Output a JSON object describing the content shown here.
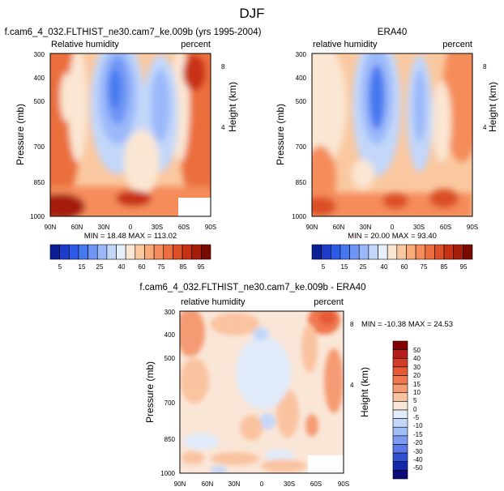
{
  "suptitle": "DJF",
  "chart_data": [
    {
      "type": "heatmap",
      "title": "f.cam6_4_032.FLTHIST_ne30.cam7_ke.009b (yrs 1995-2004)",
      "left_label": "Relative humidity",
      "right_label": "percent",
      "xlabel": "",
      "ylabel": "Pressure (mb)",
      "ylabel_right": "Height (km)",
      "x_ticks": [
        "90N",
        "60N",
        "30N",
        "0",
        "30S",
        "60S",
        "90S"
      ],
      "y_ticks": [
        "300",
        "400",
        "500",
        "700",
        "850",
        "1000"
      ],
      "y_ticks_right": [
        "8",
        "4"
      ],
      "stats": "MIN = 18.48 MAX = 113.02",
      "levels": [
        "5",
        "15",
        "25",
        "40",
        "60",
        "75",
        "85",
        "95"
      ],
      "colors": [
        "#0a1e96",
        "#1e3cc8",
        "#2d5ae6",
        "#4678f0",
        "#6e96f5",
        "#9bb9fa",
        "#c3d7fa",
        "#e6f0fa",
        "#fae6d2",
        "#fac8a0",
        "#faaa78",
        "#f58c5a",
        "#eb6e3c",
        "#dc5028",
        "#c83214",
        "#a51e0a",
        "#780a00"
      ]
    },
    {
      "type": "heatmap",
      "title": "ERA40",
      "left_label": "relative humidity",
      "right_label": "percent",
      "xlabel": "",
      "ylabel": "Pressure (mb)",
      "ylabel_right": "Height (km)",
      "x_ticks": [
        "90N",
        "60N",
        "30N",
        "0",
        "30S",
        "60S",
        "90S"
      ],
      "y_ticks": [
        "300",
        "400",
        "500",
        "700",
        "850",
        "1000"
      ],
      "y_ticks_right": [
        "8",
        "4"
      ],
      "stats": "MIN = 20.00 MAX = 93.40",
      "levels": [
        "5",
        "15",
        "25",
        "40",
        "60",
        "75",
        "85",
        "95"
      ],
      "colors": [
        "#0a1e96",
        "#1e3cc8",
        "#2d5ae6",
        "#4678f0",
        "#6e96f5",
        "#9bb9fa",
        "#c3d7fa",
        "#e6f0fa",
        "#fae6d2",
        "#fac8a0",
        "#faaa78",
        "#f58c5a",
        "#eb6e3c",
        "#dc5028",
        "#c83214",
        "#a51e0a",
        "#780a00"
      ]
    },
    {
      "type": "heatmap",
      "title": "f.cam6_4_032.FLTHIST_ne30.cam7_ke.009b - ERA40",
      "left_label": "relative humidity",
      "right_label": "percent",
      "xlabel": "",
      "ylabel": "Pressure (mb)",
      "ylabel_right": "Height (km)",
      "x_ticks": [
        "90N",
        "60N",
        "30N",
        "0",
        "30S",
        "60S",
        "90S"
      ],
      "y_ticks": [
        "300",
        "400",
        "500",
        "700",
        "850",
        "1000"
      ],
      "y_ticks_right": [
        "8",
        "4"
      ],
      "stats": "MIN = -10.38  MAX = 24.53",
      "levels": [
        "50",
        "40",
        "30",
        "20",
        "15",
        "10",
        "5",
        "0",
        "-5",
        "-10",
        "-15",
        "-20",
        "-30",
        "-40",
        "-50"
      ],
      "colors": [
        "#820000",
        "#b41e1e",
        "#d23c28",
        "#e65a37",
        "#f07850",
        "#f59b73",
        "#fac3a0",
        "#fae6d7",
        "#e1ebfa",
        "#c3d7fa",
        "#a0bef5",
        "#7d9bf0",
        "#5a78e6",
        "#3250d2",
        "#1428aa",
        "#0a0a78"
      ]
    }
  ]
}
